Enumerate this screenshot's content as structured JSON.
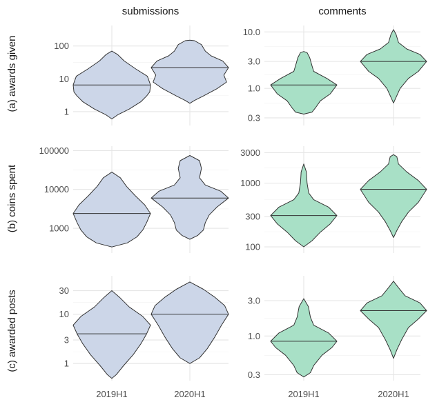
{
  "colors": {
    "submissions_fill": "#ccd6e8",
    "comments_fill": "#a8e0c6",
    "outline": "#333333"
  },
  "column_strips": [
    "submissions",
    "comments"
  ],
  "row_strips": [
    "(a) awards given",
    "(b) coins spent",
    "(c) awarded posts"
  ],
  "chart_data": [
    {
      "type": "violin",
      "row": "(a) awards given",
      "column": "submissions",
      "scale": "log10",
      "categories": [
        "2019H1",
        "2020H1"
      ],
      "yticks": [
        1,
        10,
        100
      ],
      "ytick_labels": [
        "1",
        "10",
        "100"
      ],
      "ylim": [
        0.38,
        420
      ],
      "series": [
        {
          "category": "2019H1",
          "min": 0.6,
          "max": 70,
          "median": 6.5,
          "shape": [
            [
              0.6,
              0.0
            ],
            [
              0.8,
              0.15
            ],
            [
              1.2,
              0.45
            ],
            [
              2,
              0.75
            ],
            [
              3,
              0.9
            ],
            [
              4,
              0.98
            ],
            [
              6.5,
              1.0
            ],
            [
              12,
              0.92
            ],
            [
              20,
              0.62
            ],
            [
              35,
              0.32
            ],
            [
              55,
              0.15
            ],
            [
              70,
              0.0
            ]
          ]
        },
        {
          "category": "2020H1",
          "min": 1.8,
          "max": 150,
          "median": 22,
          "shape": [
            [
              1.8,
              0.0
            ],
            [
              2.2,
              0.12
            ],
            [
              3,
              0.35
            ],
            [
              5,
              0.7
            ],
            [
              8,
              0.95
            ],
            [
              13,
              0.88
            ],
            [
              22,
              1.0
            ],
            [
              35,
              0.85
            ],
            [
              50,
              0.55
            ],
            [
              70,
              0.4
            ],
            [
              110,
              0.3
            ],
            [
              145,
              0.12
            ],
            [
              150,
              0.0
            ]
          ]
        }
      ]
    },
    {
      "type": "violin",
      "row": "(a) awards given",
      "column": "comments",
      "scale": "log10",
      "categories": [
        "2019H1",
        "2020H1"
      ],
      "yticks": [
        0.3,
        1,
        3,
        10
      ],
      "ytick_labels": [
        "0.3",
        "1.0",
        "3.0",
        "10.0"
      ],
      "ylim": [
        0.22,
        13
      ],
      "series": [
        {
          "category": "2019H1",
          "min": 0.35,
          "max": 4.5,
          "median": 1.15,
          "shape": [
            [
              0.35,
              0.0
            ],
            [
              0.38,
              0.25
            ],
            [
              0.45,
              0.35
            ],
            [
              0.6,
              0.5
            ],
            [
              0.8,
              0.8
            ],
            [
              1.15,
              1.0
            ],
            [
              1.5,
              0.7
            ],
            [
              2,
              0.3
            ],
            [
              2.5,
              0.25
            ],
            [
              3.5,
              0.18
            ],
            [
              4.3,
              0.1
            ],
            [
              4.5,
              0.0
            ]
          ]
        },
        {
          "category": "2020H1",
          "min": 0.55,
          "max": 11,
          "median": 3.0,
          "shape": [
            [
              0.55,
              0.0
            ],
            [
              0.7,
              0.08
            ],
            [
              1,
              0.2
            ],
            [
              1.5,
              0.45
            ],
            [
              2,
              0.75
            ],
            [
              3,
              1.0
            ],
            [
              4,
              0.8
            ],
            [
              5,
              0.4
            ],
            [
              6.5,
              0.15
            ],
            [
              9,
              0.08
            ],
            [
              11,
              0.0
            ]
          ]
        }
      ]
    },
    {
      "type": "violin",
      "row": "(b) coins spent",
      "column": "submissions",
      "scale": "log10",
      "categories": [
        "2019H1",
        "2020H1"
      ],
      "yticks": [
        1000,
        10000,
        100000
      ],
      "ytick_labels": [
        "1000",
        "10000",
        "100000"
      ],
      "ylim": [
        230,
        130000
      ],
      "series": [
        {
          "category": "2019H1",
          "min": 330,
          "max": 28000,
          "median": 2400,
          "shape": [
            [
              330,
              0.0
            ],
            [
              420,
              0.4
            ],
            [
              600,
              0.65
            ],
            [
              900,
              0.8
            ],
            [
              1400,
              0.9
            ],
            [
              2400,
              1.0
            ],
            [
              4000,
              0.85
            ],
            [
              7000,
              0.6
            ],
            [
              12000,
              0.38
            ],
            [
              20000,
              0.22
            ],
            [
              28000,
              0.0
            ]
          ]
        },
        {
          "category": "2020H1",
          "min": 520,
          "max": 75000,
          "median": 6000,
          "shape": [
            [
              520,
              0.0
            ],
            [
              650,
              0.2
            ],
            [
              900,
              0.35
            ],
            [
              1400,
              0.4
            ],
            [
              2200,
              0.5
            ],
            [
              3500,
              0.7
            ],
            [
              6000,
              1.0
            ],
            [
              9000,
              0.8
            ],
            [
              13000,
              0.4
            ],
            [
              20000,
              0.25
            ],
            [
              35000,
              0.3
            ],
            [
              55000,
              0.25
            ],
            [
              75000,
              0.0
            ]
          ]
        }
      ]
    },
    {
      "type": "violin",
      "row": "(b) coins spent",
      "column": "comments",
      "scale": "log10",
      "categories": [
        "2019H1",
        "2020H1"
      ],
      "yticks": [
        100,
        300,
        1000,
        3000
      ],
      "ytick_labels": [
        "100",
        "300",
        "1000",
        "3000"
      ],
      "ylim": [
        80,
        3800
      ],
      "series": [
        {
          "category": "2019H1",
          "min": 100,
          "max": 2000,
          "median": 310,
          "shape": [
            [
              100,
              0.0
            ],
            [
              125,
              0.25
            ],
            [
              170,
              0.5
            ],
            [
              230,
              0.8
            ],
            [
              310,
              1.0
            ],
            [
              420,
              0.75
            ],
            [
              550,
              0.3
            ],
            [
              700,
              0.15
            ],
            [
              1000,
              0.1
            ],
            [
              1500,
              0.08
            ],
            [
              2000,
              0.0
            ]
          ]
        },
        {
          "category": "2020H1",
          "min": 140,
          "max": 2800,
          "median": 800,
          "shape": [
            [
              140,
              0.0
            ],
            [
              180,
              0.1
            ],
            [
              250,
              0.25
            ],
            [
              350,
              0.45
            ],
            [
              500,
              0.75
            ],
            [
              800,
              1.0
            ],
            [
              1100,
              0.75
            ],
            [
              1500,
              0.4
            ],
            [
              2000,
              0.15
            ],
            [
              2600,
              0.1
            ],
            [
              2800,
              0.0
            ]
          ]
        }
      ]
    },
    {
      "type": "violin",
      "row": "(c) awarded posts",
      "column": "submissions",
      "scale": "log10",
      "categories": [
        "2019H1",
        "2020H1"
      ],
      "yticks": [
        1,
        3,
        10,
        30
      ],
      "ytick_labels": [
        "1",
        "3",
        "10",
        "30"
      ],
      "ylim": [
        0.45,
        60
      ],
      "series": [
        {
          "category": "2019H1",
          "min": 0.5,
          "max": 30,
          "median": 4,
          "shape": [
            [
              0.5,
              0.0
            ],
            [
              0.6,
              0.12
            ],
            [
              0.9,
              0.3
            ],
            [
              1.5,
              0.55
            ],
            [
              2.5,
              0.75
            ],
            [
              4,
              0.9
            ],
            [
              6,
              1.0
            ],
            [
              9,
              0.8
            ],
            [
              14,
              0.45
            ],
            [
              22,
              0.2
            ],
            [
              30,
              0.0
            ]
          ]
        },
        {
          "category": "2020H1",
          "min": 1,
          "max": 45,
          "median": 10,
          "shape": [
            [
              1,
              0.0
            ],
            [
              1.3,
              0.25
            ],
            [
              2,
              0.45
            ],
            [
              3.5,
              0.65
            ],
            [
              6,
              0.82
            ],
            [
              10,
              1.0
            ],
            [
              15,
              0.9
            ],
            [
              22,
              0.65
            ],
            [
              32,
              0.35
            ],
            [
              45,
              0.0
            ]
          ]
        }
      ]
    },
    {
      "type": "violin",
      "row": "(c) awarded posts",
      "column": "comments",
      "scale": "log10",
      "categories": [
        "2019H1",
        "2020H1"
      ],
      "yticks": [
        0.3,
        1,
        3
      ],
      "ytick_labels": [
        "0.3",
        "1.0",
        "3.0"
      ],
      "ylim": [
        0.25,
        6.5
      ],
      "series": [
        {
          "category": "2019H1",
          "min": 0.28,
          "max": 3.2,
          "median": 0.85,
          "shape": [
            [
              0.28,
              0.0
            ],
            [
              0.32,
              0.2
            ],
            [
              0.4,
              0.3
            ],
            [
              0.55,
              0.55
            ],
            [
              0.7,
              0.85
            ],
            [
              0.85,
              1.0
            ],
            [
              1.1,
              0.75
            ],
            [
              1.4,
              0.3
            ],
            [
              1.8,
              0.2
            ],
            [
              2.5,
              0.14
            ],
            [
              3.2,
              0.0
            ]
          ]
        },
        {
          "category": "2020H1",
          "min": 0.5,
          "max": 5.5,
          "median": 2.2,
          "shape": [
            [
              0.5,
              0.0
            ],
            [
              0.65,
              0.1
            ],
            [
              0.9,
              0.25
            ],
            [
              1.3,
              0.45
            ],
            [
              1.7,
              0.75
            ],
            [
              2.2,
              1.0
            ],
            [
              2.8,
              0.8
            ],
            [
              3.5,
              0.35
            ],
            [
              4.5,
              0.15
            ],
            [
              5.5,
              0.0
            ]
          ]
        }
      ]
    }
  ]
}
